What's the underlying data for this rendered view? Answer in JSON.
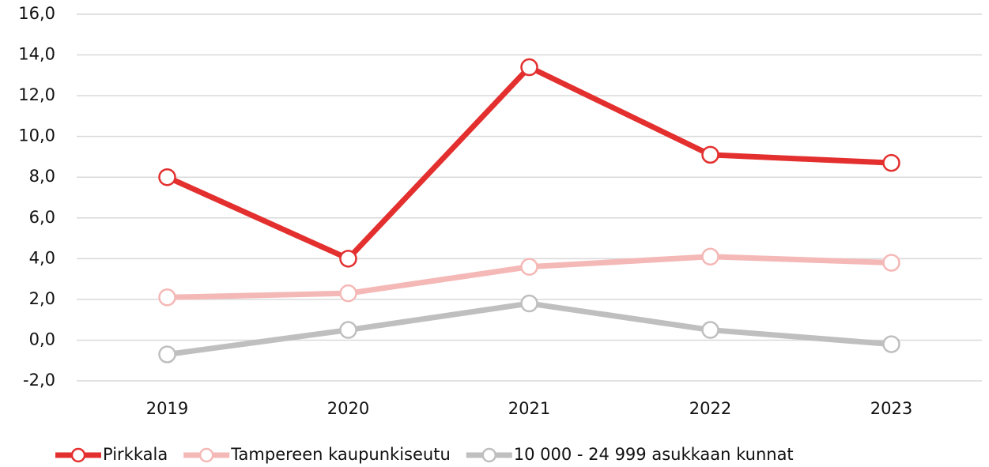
{
  "chart_data": {
    "type": "line",
    "categories": [
      "2019",
      "2020",
      "2021",
      "2022",
      "2023"
    ],
    "series": [
      {
        "name": "Pirkkala",
        "color": "#e3302f",
        "values": [
          8.0,
          4.0,
          13.4,
          9.1,
          8.7
        ]
      },
      {
        "name": "Tampereen kaupunkiseutu",
        "color": "#f4b8b6",
        "values": [
          2.1,
          2.3,
          3.6,
          4.1,
          3.8
        ]
      },
      {
        "name": "10 000 - 24 999 asukkaan kunnat",
        "color": "#bfbfbf",
        "values": [
          -0.7,
          0.5,
          1.8,
          0.5,
          -0.2
        ]
      }
    ],
    "ylim": [
      -2,
      16
    ],
    "yticks": [
      {
        "value": -2,
        "label": "-2,0"
      },
      {
        "value": 0,
        "label": "0,0"
      },
      {
        "value": 2,
        "label": "2,0"
      },
      {
        "value": 4,
        "label": "4,0"
      },
      {
        "value": 6,
        "label": "6,0"
      },
      {
        "value": 8,
        "label": "8,0"
      },
      {
        "value": 10,
        "label": "10,0"
      },
      {
        "value": 12,
        "label": "12,0"
      },
      {
        "value": 14,
        "label": "14,0"
      },
      {
        "value": 16,
        "label": "16,0"
      }
    ],
    "grid": true,
    "legend": "bottom"
  }
}
